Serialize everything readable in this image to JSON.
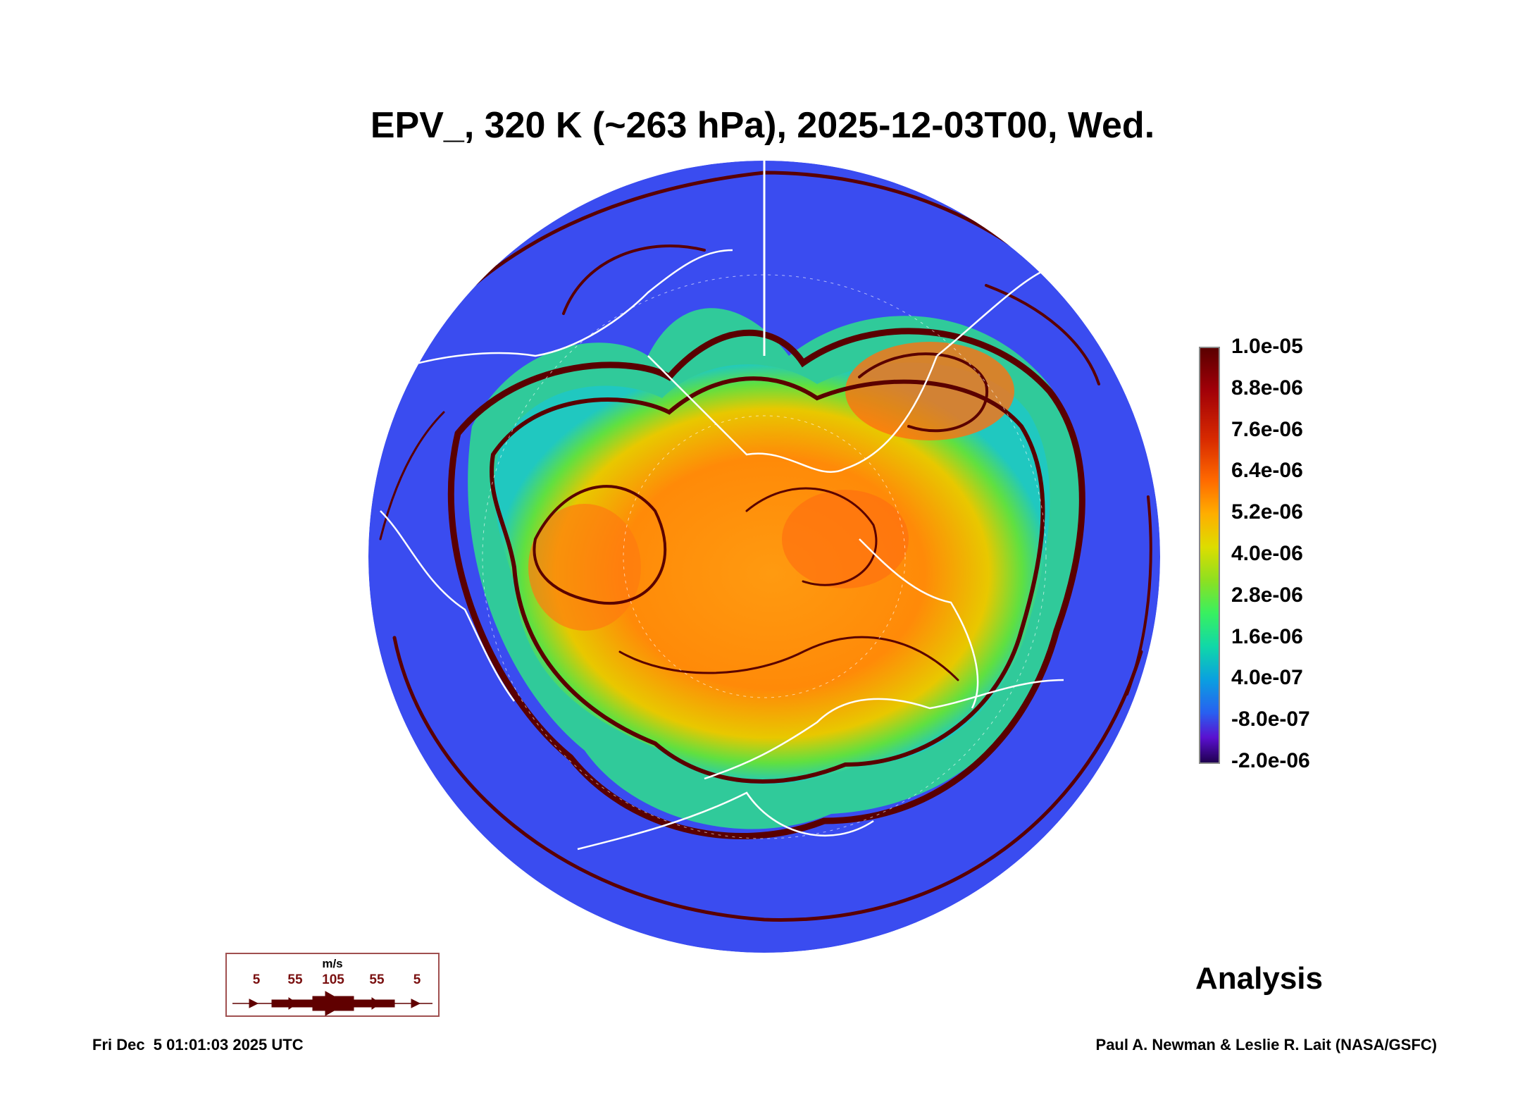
{
  "title": "EPV_, 320 K (~263 hPa), 2025-12-03T00, Wed.",
  "colorbar": {
    "labels": [
      "1.0e-05",
      "8.8e-06",
      "7.6e-06",
      "6.4e-06",
      "5.2e-06",
      "4.0e-06",
      "2.8e-06",
      "1.6e-06",
      "4.0e-07",
      "-8.0e-07",
      "-2.0e-06"
    ],
    "range": [
      -2e-06,
      1e-05
    ]
  },
  "wind_legend": {
    "unit": "m/s",
    "speeds": [
      "5",
      "55",
      "105",
      "55",
      "5"
    ],
    "color": "#600000"
  },
  "analysis_label": "Analysis",
  "footer": {
    "timestamp": "Fri Dec  5 01:01:03 2025 UTC",
    "credit": "Paul A. Newman & Leslie R. Lait (NASA/GSFC)"
  }
}
